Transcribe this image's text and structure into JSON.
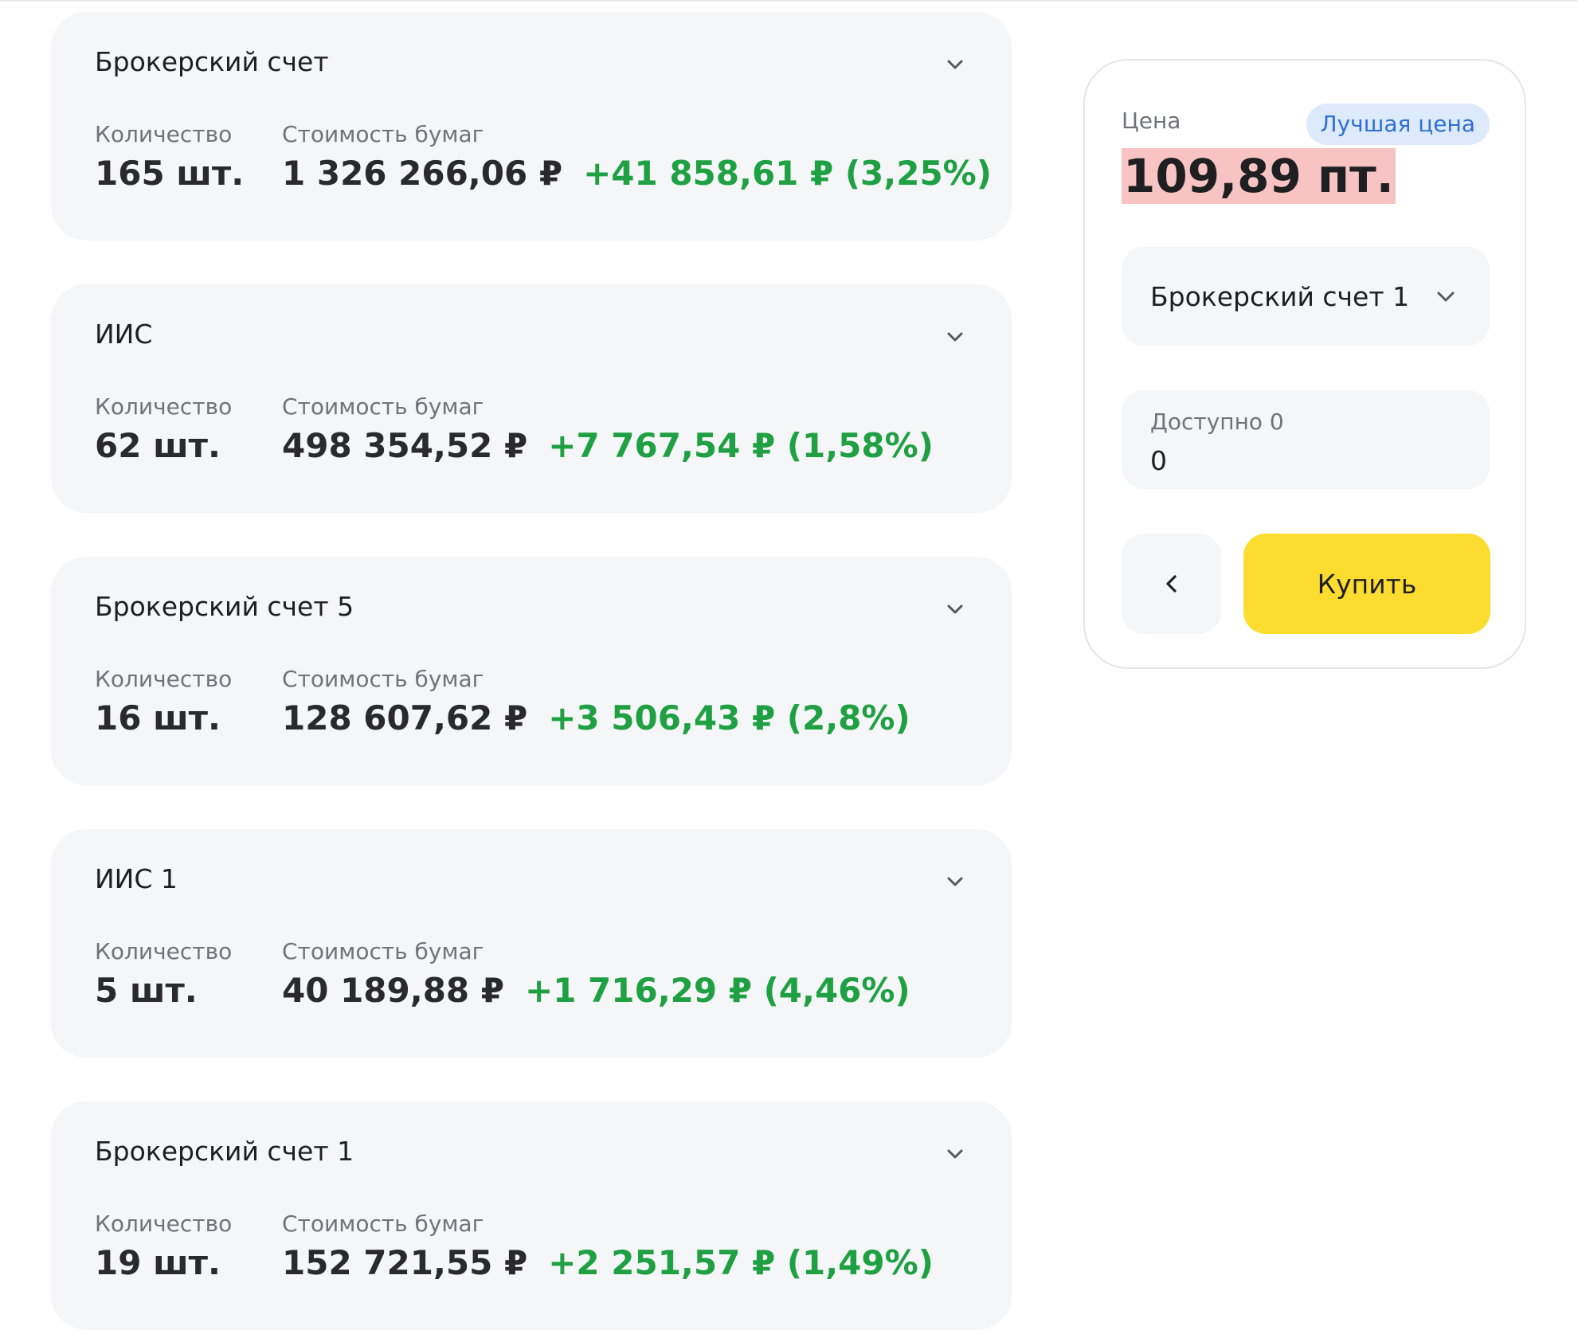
{
  "accounts": [
    {
      "name": "Брокерский счет",
      "quantity_label": "Количество",
      "quantity": "165 шт.",
      "cost_label": "Стоимость бумаг",
      "cost": "1 326 266,06 ₽",
      "change": "+41 858,61 ₽ (3,25%)"
    },
    {
      "name": "ИИС",
      "quantity_label": "Количество",
      "quantity": "62 шт.",
      "cost_label": "Стоимость бумаг",
      "cost": "498 354,52 ₽",
      "change": "+7 767,54 ₽ (1,58%)"
    },
    {
      "name": "Брокерский счет 5",
      "quantity_label": "Количество",
      "quantity": "16 шт.",
      "cost_label": "Стоимость бумаг",
      "cost": "128 607,62 ₽",
      "change": "+3 506,43 ₽ (2,8%)"
    },
    {
      "name": "ИИС 1",
      "quantity_label": "Количество",
      "quantity": "5 шт.",
      "cost_label": "Стоимость бумаг",
      "cost": "40 189,88 ₽",
      "change": "+1 716,29 ₽ (4,46%)"
    },
    {
      "name": "Брокерский счет 1",
      "quantity_label": "Количество",
      "quantity": "19 шт.",
      "cost_label": "Стоимость бумаг",
      "cost": "152 721,55 ₽",
      "change": "+2 251,57 ₽ (1,49%)"
    }
  ],
  "order": {
    "price_label": "Цена",
    "best_price_badge": "Лучшая цена",
    "price_value": "109,89 пт.",
    "account_select": "Брокерский счет 1",
    "available_label": "Доступно 0",
    "quantity_value": "0",
    "buy_label": "Купить"
  },
  "icons": {
    "chevron": "chevron-down-icon",
    "back": "chevron-left-icon"
  },
  "colors": {
    "positive": "#1ea043",
    "buy_button": "#fcdd2f",
    "badge_bg": "#ddeafc",
    "badge_text": "#2f6fd4",
    "price_highlight": "#f7c3c3",
    "card_bg": "#f5f6f8"
  }
}
